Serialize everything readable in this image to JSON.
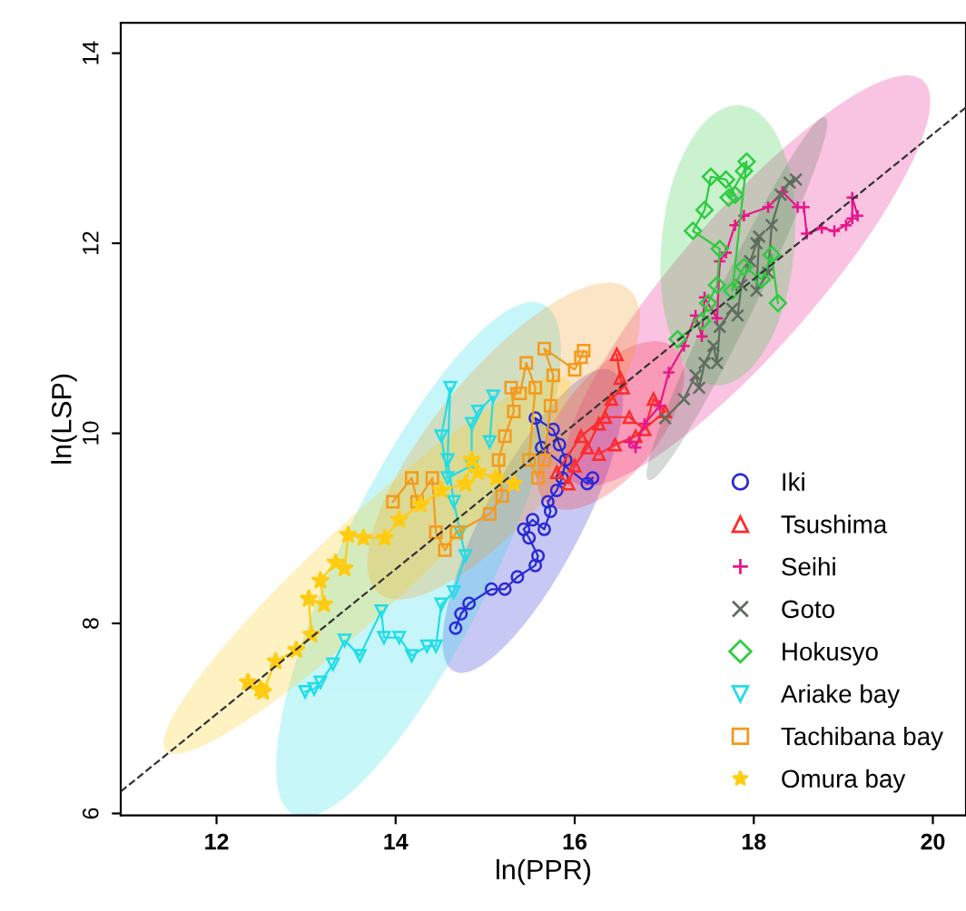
{
  "chart_data": {
    "type": "line",
    "xlabel": "ln(PPR)",
    "ylabel": "ln(LSP)",
    "xlim": [
      10.93,
      20.37
    ],
    "ylim": [
      5.98,
      14.32
    ],
    "xticks": [
      12,
      14,
      16,
      18,
      20
    ],
    "yticks": [
      6,
      8,
      10,
      12,
      14
    ],
    "grid": false,
    "legend": "bottom right",
    "line_style": "solid",
    "series": [
      {
        "name": "Iki",
        "color": "#2a2ad4",
        "marker": "circle",
        "x": [
          14.67,
          14.73,
          14.82,
          15.07,
          15.22,
          15.36,
          15.56,
          15.59,
          15.49,
          15.43,
          15.53,
          15.66,
          15.73,
          15.7,
          15.8,
          15.86,
          15.9,
          15.83,
          15.76,
          15.56,
          15.63,
          16.14,
          16.2
        ],
        "values": [
          7.95,
          8.1,
          8.21,
          8.36,
          8.36,
          8.49,
          8.61,
          8.71,
          8.9,
          8.99,
          9.09,
          8.99,
          9.18,
          9.28,
          9.4,
          9.53,
          9.72,
          9.88,
          10.04,
          10.16,
          9.85,
          9.47,
          9.53
        ]
      },
      {
        "name": "Tsushima",
        "color": "#ff2a2a",
        "marker": "triangle",
        "x": [
          16.47,
          16.51,
          16.54,
          16.41,
          16.27,
          16.14,
          16.0,
          15.93,
          15.8,
          16.07,
          16.34,
          16.61,
          16.78,
          16.88,
          17.01,
          16.68,
          16.45,
          16.27
        ],
        "values": [
          10.83,
          10.58,
          10.48,
          10.36,
          10.1,
          9.85,
          9.66,
          9.47,
          9.59,
          9.97,
          10.17,
          10.17,
          10.04,
          10.36,
          10.23,
          9.97,
          9.88,
          9.78
        ]
      },
      {
        "name": "Seihi",
        "color": "#e8168a",
        "marker": "plus",
        "x": [
          16.61,
          16.68,
          16.78,
          16.95,
          17.05,
          17.22,
          17.35,
          17.42,
          17.45,
          17.59,
          17.62,
          17.69,
          17.79,
          17.89,
          18.16,
          18.32,
          18.49,
          18.56,
          18.59,
          18.76,
          18.9,
          19.03,
          19.1,
          19.1,
          19.16
        ],
        "values": [
          9.91,
          9.85,
          10.1,
          10.29,
          10.64,
          10.92,
          11.24,
          11.02,
          11.43,
          11.21,
          11.81,
          11.9,
          12.19,
          12.29,
          12.38,
          12.54,
          12.38,
          12.38,
          12.1,
          12.16,
          12.13,
          12.19,
          12.26,
          12.48,
          12.29
        ]
      },
      {
        "name": "Goto",
        "color": "#5e6e5e",
        "marker": "cross",
        "x": [
          17.01,
          17.22,
          17.35,
          17.39,
          17.45,
          17.55,
          17.59,
          17.62,
          17.76,
          17.82,
          17.86,
          17.96,
          18.03,
          18.06,
          18.03,
          18.16,
          18.2,
          18.3,
          18.4,
          18.47
        ],
        "values": [
          10.16,
          10.36,
          10.61,
          10.48,
          10.74,
          10.92,
          10.74,
          11.12,
          11.31,
          11.24,
          11.56,
          11.81,
          12.0,
          12.07,
          11.5,
          11.69,
          12.19,
          12.51,
          12.64,
          12.67
        ]
      },
      {
        "name": "Hokusyo",
        "color": "#2ecc40",
        "marker": "diamond",
        "x": [
          17.15,
          17.42,
          17.49,
          17.59,
          17.62,
          17.32,
          17.45,
          17.52,
          17.69,
          17.79,
          17.72,
          17.89,
          17.92,
          17.76,
          17.89,
          18.09,
          18.2,
          18.27
        ],
        "values": [
          10.99,
          11.18,
          11.37,
          11.56,
          11.94,
          12.13,
          12.35,
          12.7,
          12.67,
          12.51,
          12.48,
          12.76,
          12.86,
          11.5,
          11.75,
          11.62,
          11.88,
          11.37
        ]
      },
      {
        "name": "Ariake bay",
        "color": "#22dde8",
        "marker": "triangle_down",
        "x": [
          12.99,
          13.09,
          13.16,
          13.3,
          13.43,
          13.6,
          13.84,
          13.87,
          14.04,
          14.18,
          14.35,
          14.45,
          14.51,
          14.65,
          14.78,
          14.72,
          14.65,
          14.58,
          14.61,
          14.51,
          14.58,
          14.85,
          14.85,
          14.92,
          15.09,
          15.05
        ],
        "values": [
          7.28,
          7.31,
          7.38,
          7.57,
          7.82,
          7.66,
          8.13,
          7.85,
          7.85,
          7.66,
          7.76,
          7.76,
          8.2,
          8.33,
          8.71,
          8.96,
          9.28,
          9.72,
          10.48,
          9.97,
          9.53,
          9.66,
          10.1,
          10.23,
          10.39,
          9.91
        ]
      },
      {
        "name": "Tachibana bay",
        "color": "#f59a1a",
        "marker": "square",
        "x": [
          13.97,
          14.18,
          14.24,
          14.41,
          14.45,
          14.55,
          14.68,
          15.05,
          15.19,
          15.15,
          15.22,
          15.32,
          15.29,
          15.39,
          15.46,
          15.56,
          15.49,
          15.59,
          15.66,
          15.73,
          15.76,
          15.66,
          16.0,
          16.07,
          16.1
        ],
        "values": [
          9.28,
          9.53,
          9.28,
          9.53,
          8.96,
          8.77,
          8.96,
          9.15,
          9.34,
          9.72,
          9.97,
          10.23,
          10.48,
          10.42,
          10.74,
          10.48,
          9.72,
          9.53,
          9.72,
          10.29,
          10.61,
          10.89,
          10.67,
          10.8,
          10.87
        ]
      },
      {
        "name": "Omura bay",
        "color": "#ffcc11",
        "marker": "star",
        "x": [
          12.35,
          12.49,
          12.52,
          12.66,
          12.89,
          13.06,
          13.03,
          13.2,
          13.16,
          13.33,
          13.43,
          13.47,
          13.64,
          13.88,
          14.04,
          14.28,
          14.51,
          14.78,
          14.85,
          14.92,
          15.12,
          15.32
        ],
        "values": [
          7.38,
          7.31,
          7.28,
          7.6,
          7.72,
          7.88,
          8.26,
          8.2,
          8.45,
          8.64,
          8.58,
          8.93,
          8.9,
          8.9,
          9.09,
          9.25,
          9.4,
          9.47,
          9.72,
          9.59,
          9.53,
          9.47
        ]
      },
      {
        "color": "#333333",
        "marker": "none",
        "line_style": "dashed",
        "x": [
          10.93,
          20.37
        ],
        "values": [
          6.23,
          13.43
        ]
      }
    ]
  }
}
